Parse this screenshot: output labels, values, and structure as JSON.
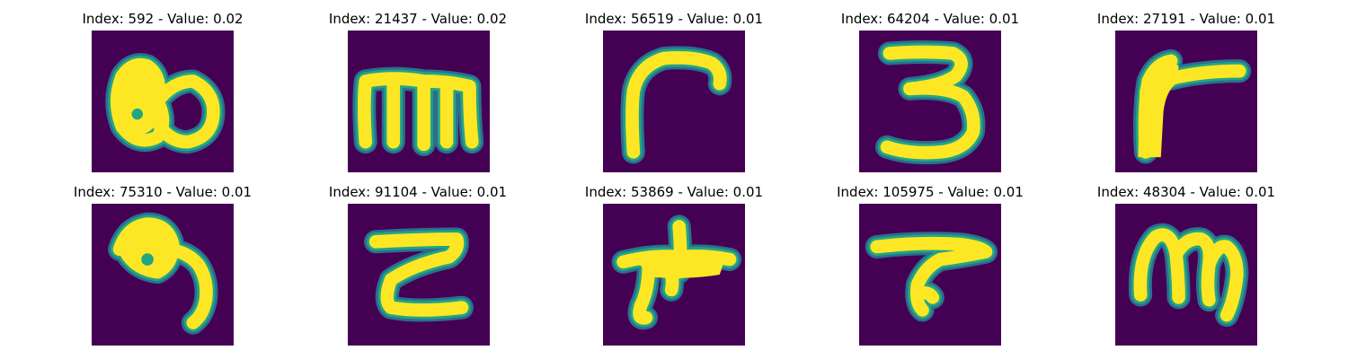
{
  "colors": {
    "background": "#440154",
    "stroke_core": "#fde725",
    "stroke_edge": "#21a585",
    "stroke_halo": "#2c6e8e"
  },
  "panels": [
    {
      "title": "Index: 592 - Value: 0.02",
      "glyph": "blob-eight"
    },
    {
      "title": "Index: 21437 - Value: 0.02",
      "glyph": "m-shape"
    },
    {
      "title": "Index: 56519 - Value: 0.01",
      "glyph": "hook-shape"
    },
    {
      "title": "Index: 64204 - Value: 0.01",
      "glyph": "three-shape"
    },
    {
      "title": "Index: 27191 - Value: 0.01",
      "glyph": "angle-shape"
    },
    {
      "title": "Index: 75310 - Value: 0.01",
      "glyph": "loop-shape"
    },
    {
      "title": "Index: 91104 - Value: 0.01",
      "glyph": "zigzag-shape"
    },
    {
      "title": "Index: 53869 - Value: 0.01",
      "glyph": "star-shape"
    },
    {
      "title": "Index: 105975 - Value: 0.01",
      "glyph": "t-shape"
    },
    {
      "title": "Index: 48304 - Value: 0.01",
      "glyph": "m-cursive-shape"
    }
  ]
}
